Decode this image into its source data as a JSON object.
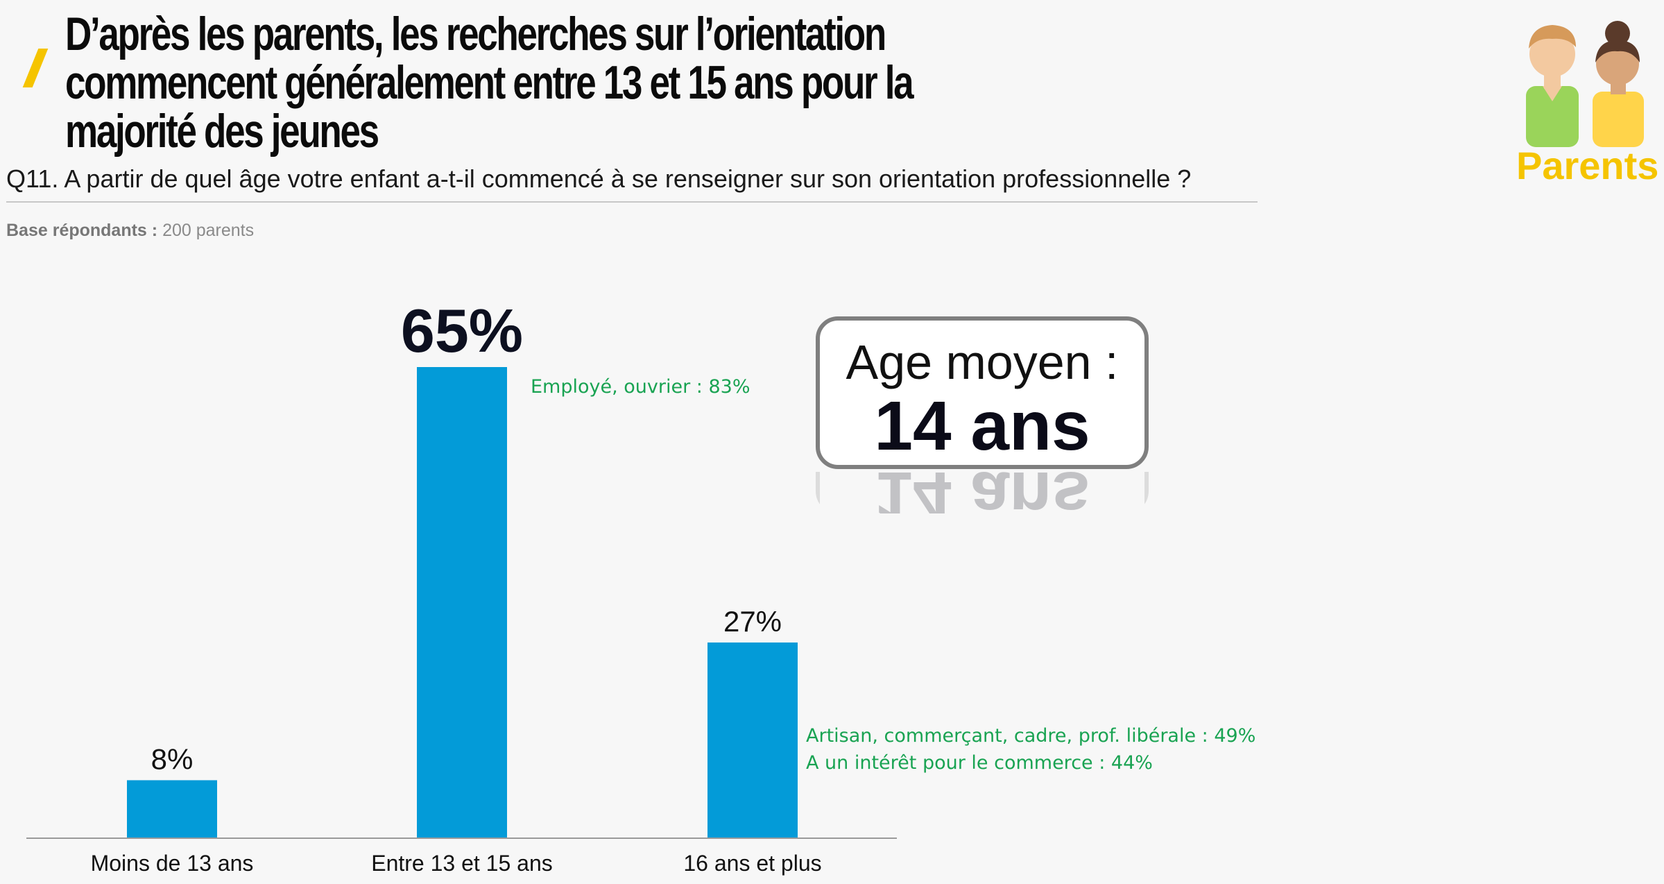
{
  "title": "D’après les parents, les recherches sur l’orientation commencent généralement entre 13 et 15 ans pour la majorité des jeunes",
  "question": "Q11. A partir de quel âge votre enfant a-t-il commencé à se renseigner sur son orientation professionnelle ?",
  "base": {
    "label": "Base répondants :",
    "value": "200 parents"
  },
  "badge": {
    "label": "Parents",
    "icon": "parents-icon",
    "color": "#f5c400"
  },
  "average": {
    "label": "Age moyen :",
    "value": "14 ans"
  },
  "notes": {
    "bar2": "Employé, ouvrier : 83%",
    "bar3": [
      "Artisan, commerçant, cadre, prof. libérale : 49%",
      "A un intérêt pour le commerce : 44%"
    ],
    "color": "#19a352"
  },
  "chart_data": {
    "type": "bar",
    "categories": [
      "Moins de 13 ans",
      "Entre 13 et 15 ans",
      "16 ans et plus"
    ],
    "values": [
      8,
      65,
      27
    ],
    "value_labels": [
      "8%",
      "65%",
      "27%"
    ],
    "highlight_index": 1,
    "bar_color": "#039bd8",
    "ylim": [
      0,
      65
    ],
    "grid": false,
    "legend": "none"
  }
}
